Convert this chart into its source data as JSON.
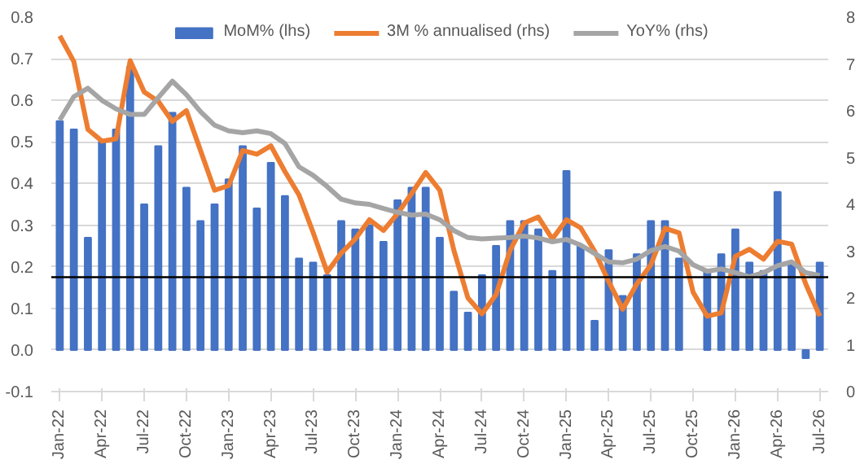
{
  "chart_data": {
    "type": "bar",
    "categories": [
      "Jan-22",
      null,
      null,
      "Apr-22",
      null,
      null,
      "Jul-22",
      null,
      null,
      "Oct-22",
      null,
      null,
      "Jan-23",
      null,
      null,
      "Apr-23",
      null,
      null,
      "Jul-23",
      null,
      null,
      "Oct-23",
      null,
      null,
      "Jan-24",
      null,
      null,
      "Apr-24",
      null,
      null,
      "Jul-24",
      null,
      null,
      "Oct-24",
      null,
      null,
      "Jan-25",
      null,
      null,
      "Apr-25",
      null,
      null,
      "Jul-25",
      null,
      null,
      "Oct-25",
      null,
      null,
      "Jan-26",
      null,
      null,
      "Apr-26",
      null,
      null,
      "Jul-26"
    ],
    "series": [
      {
        "name": "MoM% (lhs)",
        "color": "#4472c4",
        "values": [
          0.55,
          0.53,
          0.27,
          0.5,
          0.53,
          0.68,
          0.35,
          0.49,
          0.57,
          0.39,
          0.31,
          0.35,
          0.41,
          0.49,
          0.34,
          0.45,
          0.37,
          0.22,
          0.21,
          0.18,
          0.31,
          0.29,
          0.3,
          0.26,
          0.36,
          0.39,
          0.39,
          0.27,
          0.14,
          0.09,
          0.18,
          0.25,
          0.31,
          0.31,
          0.29,
          0.19,
          0.43,
          0.25,
          0.07,
          0.24,
          0.13,
          0.23,
          0.31,
          0.31,
          0.22,
          null,
          0.19,
          0.23,
          0.29,
          0.21,
          0.19,
          0.38,
          0.21,
          -0.02,
          0.21
        ]
      },
      {
        "name": "3M % annualised (rhs)",
        "type": "line",
        "axis": "y2",
        "color": "#ed7d31",
        "values": [
          7.6,
          7.05,
          5.6,
          5.35,
          5.4,
          7.07,
          6.4,
          6.2,
          5.77,
          6.0,
          5.15,
          4.3,
          4.4,
          5.15,
          5.07,
          5.25,
          4.7,
          4.2,
          3.4,
          2.55,
          2.96,
          3.26,
          3.67,
          3.44,
          3.8,
          4.23,
          4.68,
          4.3,
          3.02,
          2.0,
          1.66,
          2.07,
          3.02,
          3.6,
          3.73,
          3.26,
          3.67,
          3.5,
          3.0,
          2.35,
          1.76,
          2.3,
          2.71,
          3.49,
          3.39,
          2.12,
          1.61,
          1.68,
          2.89,
          3.04,
          2.83,
          3.21,
          3.15,
          2.3,
          1.61
        ]
      },
      {
        "name": "YoY% (rhs)",
        "type": "line",
        "axis": "y2",
        "color": "#a5a5a5",
        "values": [
          5.8,
          6.3,
          6.48,
          6.22,
          6.04,
          5.92,
          5.92,
          6.28,
          6.63,
          6.34,
          5.98,
          5.69,
          5.57,
          5.53,
          5.57,
          5.51,
          5.3,
          4.8,
          4.62,
          4.38,
          4.11,
          4.03,
          4.0,
          3.91,
          3.83,
          3.77,
          3.79,
          3.67,
          3.44,
          3.29,
          3.26,
          3.28,
          3.29,
          3.32,
          3.28,
          3.2,
          3.25,
          3.13,
          2.95,
          2.77,
          2.75,
          2.83,
          3.01,
          3.1,
          3.0,
          2.71,
          2.57,
          2.62,
          2.54,
          2.45,
          2.54,
          2.69,
          2.77,
          2.54,
          2.48
        ]
      }
    ],
    "ylim": [
      -0.1,
      0.8
    ],
    "yticks": [
      {
        "value": -0.1,
        "label": "-0.1"
      },
      {
        "value": 0,
        "label": "0.0"
      },
      0.1,
      0.2,
      0.3,
      0.4,
      0.5,
      0.6,
      0.7,
      0.8
    ],
    "y2lim": [
      0,
      8
    ],
    "y2ticks": [
      0,
      1,
      2,
      3,
      4,
      5,
      6,
      7,
      8
    ],
    "ref_lines": [
      {
        "axis": "y",
        "value": 0.175,
        "color": "#000000"
      }
    ],
    "grid": "y",
    "legend": "top"
  }
}
